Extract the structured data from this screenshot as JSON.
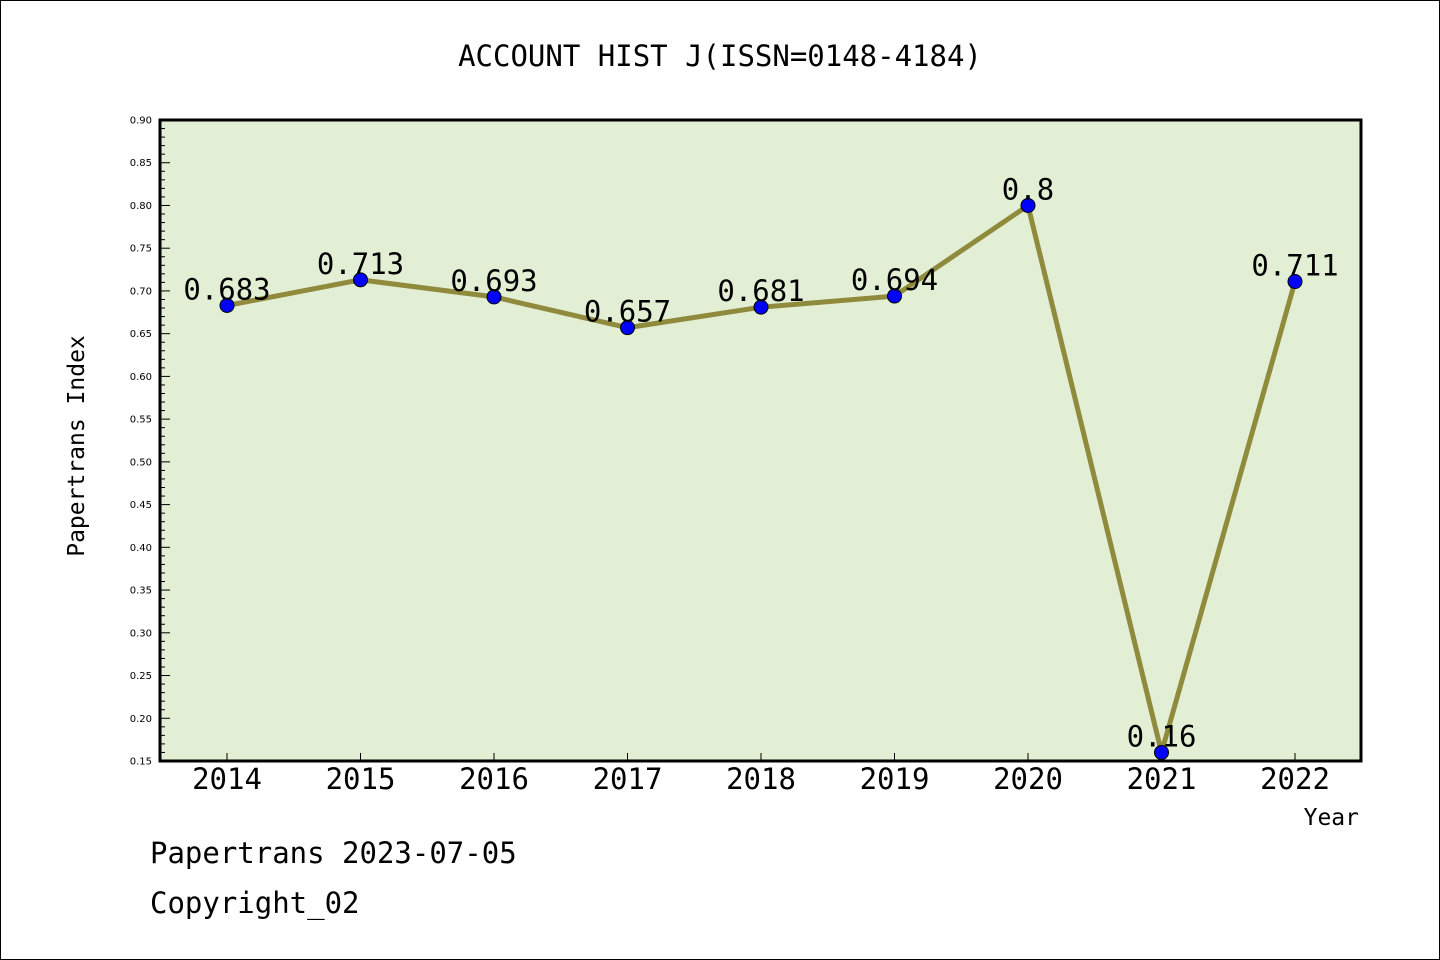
{
  "chart_data": {
    "type": "line",
    "title": "ACCOUNT HIST J(ISSN=0148-4184)",
    "xlabel": "Year",
    "ylabel": "Papertrans Index",
    "categories": [
      "2014",
      "2015",
      "2016",
      "2017",
      "2018",
      "2019",
      "2020",
      "2021",
      "2022"
    ],
    "series": [
      {
        "values": [
          0.683,
          0.713,
          0.693,
          0.657,
          0.681,
          0.694,
          0.8,
          0.16,
          0.711
        ],
        "data_labels": [
          "0.683",
          "0.713",
          "0.693",
          "0.657",
          "0.681",
          "0.694",
          "0.8",
          "0.16",
          "0.711"
        ]
      }
    ],
    "ylim": [
      0.15,
      0.9
    ],
    "yticks": [
      "0.15",
      "0.20",
      "0.25",
      "0.30",
      "0.35",
      "0.40",
      "0.45",
      "0.50",
      "0.55",
      "0.60",
      "0.65",
      "0.70",
      "0.75",
      "0.80",
      "0.85",
      "0.90"
    ],
    "grid": false,
    "legend": "none",
    "colors": {
      "plot_background": "#e2efd5",
      "line": "#8f8a3c",
      "marker": "#0000ff"
    }
  },
  "footer": {
    "line1": "Papertrans 2023-07-05",
    "line2": "Copyright_02"
  }
}
